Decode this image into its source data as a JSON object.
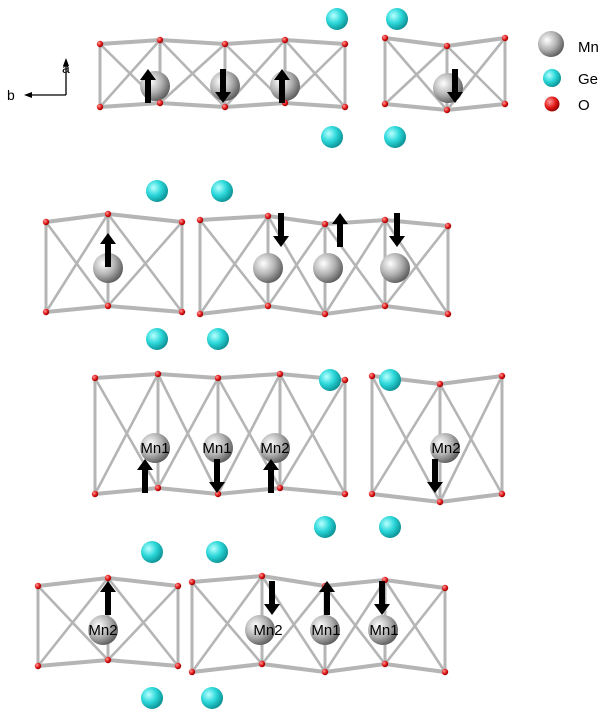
{
  "axes": {
    "a_label": "a",
    "b_label": "b"
  },
  "legend": [
    {
      "label": "Mn",
      "color": "#a9a9a9"
    },
    {
      "label": "Ge",
      "color": "#22d1d4"
    },
    {
      "label": "O",
      "color": "#e01414"
    }
  ],
  "site_labels": [
    "Mn1",
    "Mn1",
    "Mn2",
    "Mn2",
    "Mn2",
    "Mn2",
    "Mn1",
    "Mn1"
  ],
  "spins": [
    "up",
    "down",
    "up",
    "down",
    "up",
    "down",
    "up",
    "down",
    "up",
    "down",
    "up",
    "down",
    "up",
    "down",
    "up",
    "down"
  ],
  "colors": {
    "mn": "#a9a9a9",
    "ge": "#22d1d4",
    "o": "#e01414",
    "bond": "#b5b5b5",
    "arrow": "#000000"
  }
}
